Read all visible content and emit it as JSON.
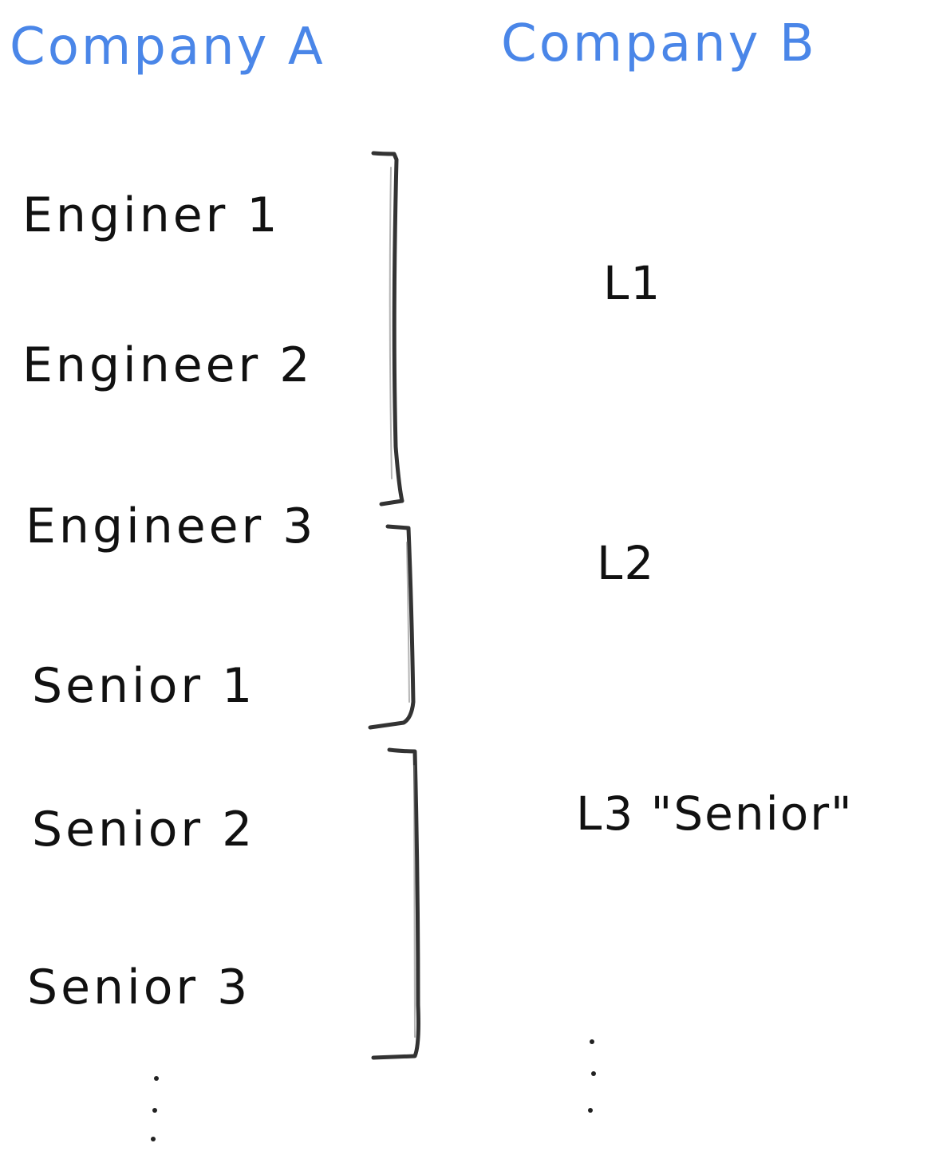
{
  "headers": {
    "company_a": "Company A",
    "company_b": "Company B"
  },
  "company_a_titles": [
    "Enginer 1",
    "Engineer 2",
    "Engineer 3",
    "Senior 1",
    "Senior 2",
    "Senior 3"
  ],
  "company_b_levels": [
    "L1",
    "L2",
    "L3 \"Senior\""
  ],
  "mapping": [
    {
      "level": "L1",
      "titles": [
        "Enginer 1",
        "Engineer 2",
        "Engineer 3"
      ]
    },
    {
      "level": "L2",
      "titles": [
        "Engineer 3",
        "Senior 1"
      ]
    },
    {
      "level": "L3 \"Senior\"",
      "titles": [
        "Senior 2",
        "Senior 3"
      ]
    }
  ],
  "colors": {
    "header": "#4a86e8",
    "ink": "#111111",
    "bracket": "#333333"
  }
}
